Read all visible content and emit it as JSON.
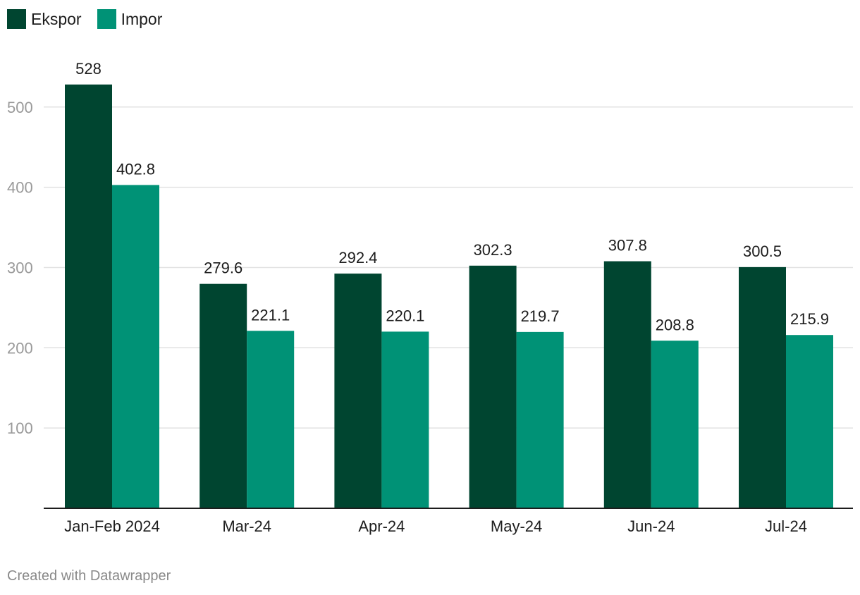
{
  "legend": [
    {
      "name": "Ekspor",
      "color": "#004530"
    },
    {
      "name": "Impor",
      "color": "#009276"
    }
  ],
  "footer": {
    "text": "Created with Datawrapper"
  },
  "chart_data": {
    "type": "bar",
    "title": "",
    "xlabel": "",
    "ylabel": "",
    "categories": [
      "Jan-Feb 2024",
      "Mar-24",
      "Apr-24",
      "May-24",
      "Jun-24",
      "Jul-24"
    ],
    "series": [
      {
        "name": "Ekspor",
        "color": "#004530",
        "values": [
          528,
          279.6,
          292.4,
          302.3,
          307.8,
          300.5
        ],
        "labels": [
          "528",
          "279.6",
          "292.4",
          "302.3",
          "307.8",
          "300.5"
        ]
      },
      {
        "name": "Impor",
        "color": "#009276",
        "values": [
          402.8,
          221.1,
          220.1,
          219.7,
          208.8,
          215.9
        ],
        "labels": [
          "402.8",
          "221.1",
          "220.1",
          "219.7",
          "208.8",
          "215.9"
        ]
      }
    ],
    "yticks": [
      100,
      200,
      300,
      400,
      500
    ],
    "ylim": [
      0,
      550
    ],
    "grid": true,
    "legend_position": "top-left"
  }
}
